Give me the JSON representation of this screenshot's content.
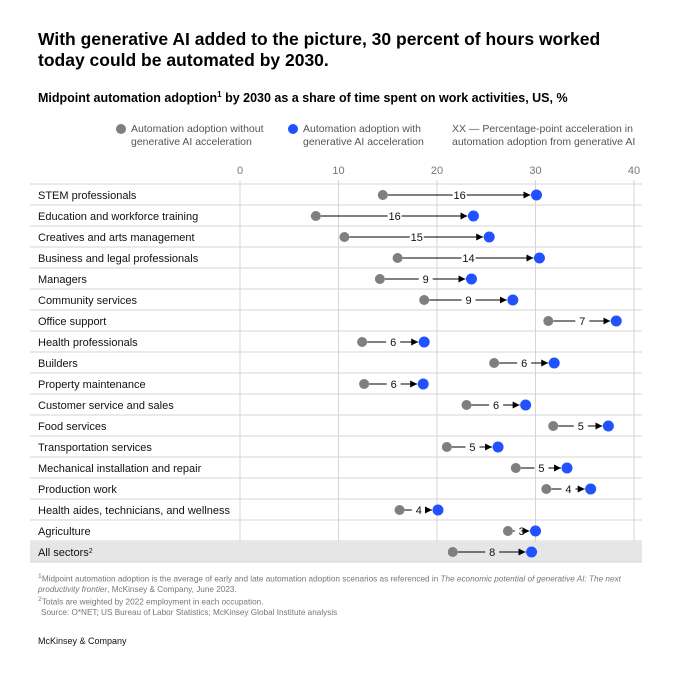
{
  "title": "With generative AI added to the picture, 30 percent of hours worked today could be automated by 2030.",
  "subtitle": "Midpoint automation adoption",
  "subtitle_sup": "1",
  "subtitle_rest": " by 2030 as a share of time spent on work activities, US, %",
  "legend": {
    "without": "Automation adoption without generative AI acceleration",
    "with": "Automation adoption with generative AI acceleration",
    "xx": "XX — Percentage-point acceleration in automation adoption from generative AI"
  },
  "colors": {
    "without": "#7f7f7f",
    "with": "#2251ff",
    "grid": "#d5d5d5",
    "highlight": "#e6e6e6"
  },
  "chart_data": {
    "type": "dumbbell",
    "xlim": [
      0,
      40
    ],
    "xticks": [
      0,
      10,
      20,
      30,
      40
    ],
    "rows": [
      {
        "label": "STEM professionals",
        "without": 14.5,
        "with": 30.1,
        "delta": "16"
      },
      {
        "label": "Education and workforce training",
        "without": 7.7,
        "with": 23.7,
        "delta": "16"
      },
      {
        "label": "Creatives and arts management",
        "without": 10.6,
        "with": 25.3,
        "delta": "15"
      },
      {
        "label": "Business and legal professionals",
        "without": 16.0,
        "with": 30.4,
        "delta": "14"
      },
      {
        "label": "Managers",
        "without": 14.2,
        "with": 23.5,
        "delta": "9"
      },
      {
        "label": "Community services",
        "without": 18.7,
        "with": 27.7,
        "delta": "9"
      },
      {
        "label": "Office support",
        "without": 31.3,
        "with": 38.2,
        "delta": "7"
      },
      {
        "label": "Health professionals",
        "without": 12.4,
        "with": 18.7,
        "delta": "6"
      },
      {
        "label": "Builders",
        "without": 25.8,
        "with": 31.9,
        "delta": "6"
      },
      {
        "label": "Property maintenance",
        "without": 12.6,
        "with": 18.6,
        "delta": "6"
      },
      {
        "label": "Customer service and sales",
        "without": 23.0,
        "with": 29.0,
        "delta": "6"
      },
      {
        "label": "Food services",
        "without": 31.8,
        "with": 37.4,
        "delta": "5"
      },
      {
        "label": "Transportation services",
        "without": 21.0,
        "with": 26.2,
        "delta": "5"
      },
      {
        "label": "Mechanical installation and repair",
        "without": 28.0,
        "with": 33.2,
        "delta": "5"
      },
      {
        "label": "Production work",
        "without": 31.1,
        "with": 35.6,
        "delta": "4"
      },
      {
        "label": "Health aides, technicians, and wellness",
        "without": 16.2,
        "with": 20.1,
        "delta": "4"
      },
      {
        "label": "Agriculture",
        "without": 27.2,
        "with": 30.0,
        "delta": "3"
      },
      {
        "label": "All sectors",
        "label_sup": "2",
        "without": 21.6,
        "with": 29.6,
        "delta": "8",
        "highlight": true
      }
    ]
  },
  "footnotes": {
    "note1_sup": "1",
    "note1_a": "Midpoint automation adoption is the average of early and late automation adoption scenarios as referenced in ",
    "note1_italic": "The economic potential of generative AI: The next productivity frontier",
    "note1_b": ", McKinsey & Company, June 2023.",
    "note2_sup": "2",
    "note2": "Totals are weighted by 2022 employment in each occupation.",
    "source": "Source: O*NET; US Bureau of Labor Statistics; McKinsey Global Institute analysis"
  },
  "brand": "McKinsey & Company"
}
